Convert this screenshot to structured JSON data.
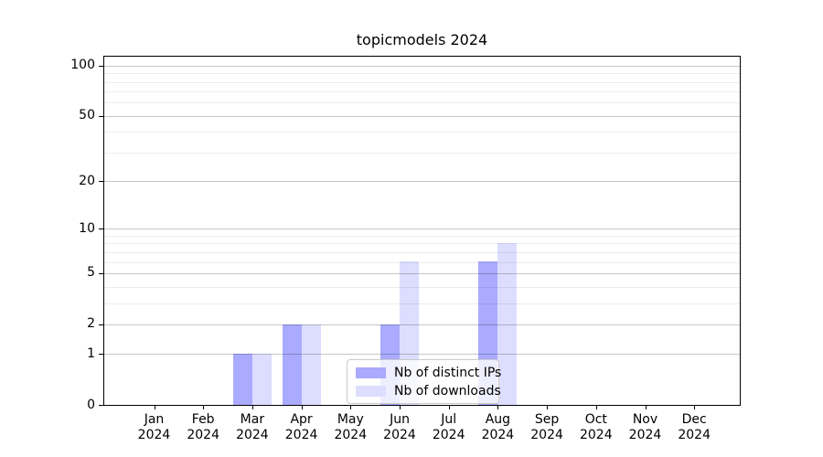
{
  "chart_data": {
    "type": "bar",
    "title": "topicmodels 2024",
    "categories": [
      "Jan 2024",
      "Feb 2024",
      "Mar 2024",
      "Apr 2024",
      "May 2024",
      "Jun 2024",
      "Jul 2024",
      "Aug 2024",
      "Sep 2024",
      "Oct 2024",
      "Nov 2024",
      "Dec 2024"
    ],
    "series": [
      {
        "name": "Nb of distinct IPs",
        "color": "#aaaaff",
        "values": [
          0,
          0,
          1,
          2,
          0,
          2,
          0,
          6,
          0,
          0,
          0,
          0
        ]
      },
      {
        "name": "Nb of downloads",
        "color": "#ddddff",
        "values": [
          0,
          0,
          1,
          2,
          0,
          6,
          0,
          8,
          0,
          0,
          0,
          0
        ]
      }
    ],
    "yscale": "log1p",
    "ylim": [
      0,
      113
    ],
    "ytick_labels": [
      0,
      1,
      2,
      5,
      10,
      20,
      50,
      100
    ],
    "minor_gridlines": [
      3,
      4,
      6,
      7,
      8,
      9,
      30,
      40,
      60,
      70,
      80,
      90
    ],
    "grid": true,
    "legend_position": "lower-center-inside",
    "colors": {
      "axis": "#000000",
      "major_grid": "#c7c7c7",
      "minor_grid": "#ececec",
      "background": "#ffffff"
    }
  }
}
